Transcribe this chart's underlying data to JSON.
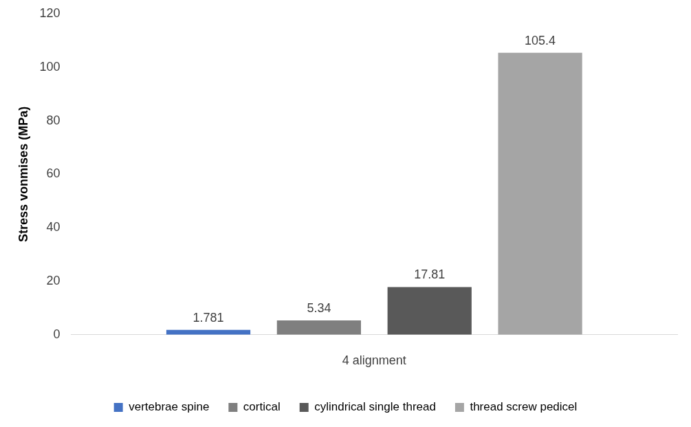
{
  "chart_data": {
    "type": "bar",
    "xlabel": "4 alignment",
    "ylabel": "Stress vonmises (MPa)",
    "categories": [
      null
    ],
    "series": [
      {
        "name": "vertebrae spine",
        "color": "#4472c4",
        "values": [
          1.781
        ]
      },
      {
        "name": "cortical",
        "color": "#7f7f7f",
        "values": [
          5.34
        ]
      },
      {
        "name": "cylindrical single thread",
        "color": "#595959",
        "values": [
          17.81
        ]
      },
      {
        "name": "thread screw pedicel",
        "color": "#a5a5a5",
        "values": [
          105.4
        ]
      }
    ],
    "ylim": [
      0,
      120
    ],
    "yticks": [
      0,
      20,
      40,
      60,
      80,
      100,
      120
    ],
    "grid": false,
    "legend": "bottom",
    "data_labels": true
  }
}
